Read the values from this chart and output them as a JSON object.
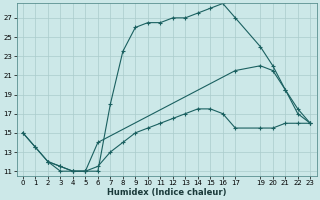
{
  "title": "",
  "xlabel": "Humidex (Indice chaleur)",
  "background_color": "#cce8e8",
  "grid_color": "#aacccc",
  "line_color1": "#1a6060",
  "line_color2": "#1a6060",
  "line_color3": "#1a6060",
  "xlim": [
    -0.5,
    23.5
  ],
  "ylim": [
    10.5,
    28.5
  ],
  "xticks": [
    0,
    1,
    2,
    3,
    4,
    5,
    6,
    7,
    8,
    9,
    10,
    11,
    12,
    13,
    14,
    15,
    16,
    17,
    19,
    20,
    21,
    22,
    23
  ],
  "yticks": [
    11,
    13,
    15,
    17,
    19,
    21,
    23,
    25,
    27
  ],
  "line1_x": [
    0,
    1,
    2,
    3,
    4,
    5,
    6,
    7,
    8,
    9,
    10,
    11,
    12,
    13,
    14,
    15,
    16,
    17,
    19,
    20,
    21,
    22,
    23
  ],
  "line1_y": [
    15.0,
    13.5,
    12.0,
    11.0,
    11.0,
    11.0,
    11.0,
    18.0,
    23.5,
    26.0,
    26.5,
    26.5,
    27.0,
    27.0,
    27.5,
    28.0,
    28.5,
    27.0,
    24.0,
    22.0,
    19.5,
    17.0,
    16.0
  ],
  "line2_x": [
    0,
    1,
    2,
    3,
    4,
    5,
    6,
    17,
    19,
    20,
    21,
    22,
    23
  ],
  "line2_y": [
    15.0,
    13.5,
    12.0,
    11.5,
    11.0,
    11.0,
    14.0,
    21.5,
    22.0,
    21.5,
    19.5,
    17.5,
    16.0
  ],
  "line3_x": [
    2,
    3,
    4,
    5,
    6,
    7,
    8,
    9,
    10,
    11,
    12,
    13,
    14,
    15,
    16,
    17,
    19,
    20,
    21,
    22,
    23
  ],
  "line3_y": [
    12.0,
    11.5,
    11.0,
    11.0,
    11.5,
    13.0,
    14.0,
    15.0,
    15.5,
    16.0,
    16.5,
    17.0,
    17.5,
    17.5,
    17.0,
    15.5,
    15.5,
    15.5,
    16.0,
    16.0,
    16.0
  ]
}
